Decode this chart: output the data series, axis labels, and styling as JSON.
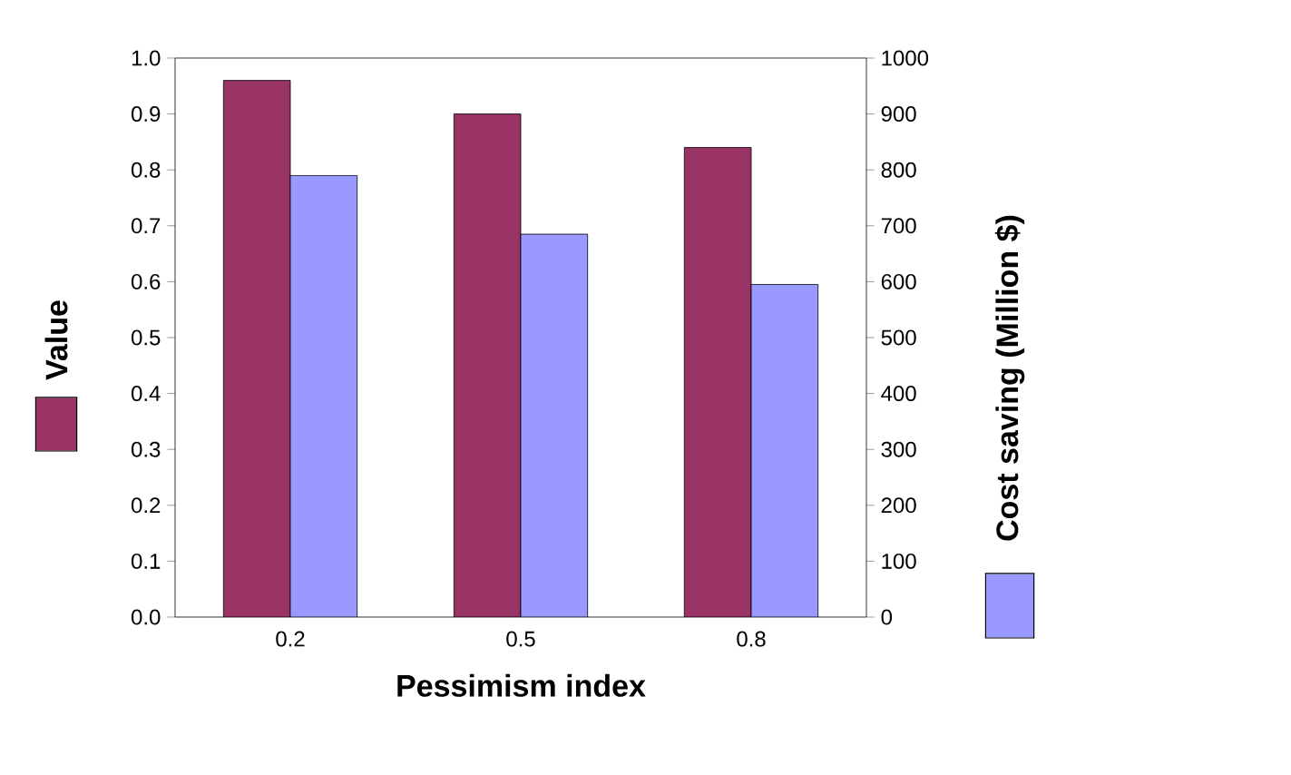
{
  "chart_data": {
    "type": "bar",
    "xlabel": "Pessimism index",
    "ylabel": "Value",
    "y2label": "Cost saving (Million $)",
    "categories": [
      "0.2",
      "0.5",
      "0.8"
    ],
    "series": [
      {
        "color": "#993366",
        "values": [
          0.96,
          0.9,
          0.84
        ]
      },
      {
        "color": "#9999ff",
        "values": [
          790,
          685,
          595
        ],
        "axis": "y2"
      }
    ],
    "ylim": [
      0,
      1
    ],
    "yticks": [
      {
        "value": 0,
        "label": "0.0"
      },
      0.1,
      0.2,
      0.3,
      0.4,
      0.5,
      0.6,
      0.7,
      0.8,
      0.9,
      {
        "value": 1,
        "label": "1.0"
      }
    ],
    "y2lim": [
      0,
      1000
    ],
    "y2ticks": [
      0,
      100,
      200,
      300,
      400,
      500,
      600,
      700,
      800,
      900,
      1000
    ],
    "grid": false
  }
}
